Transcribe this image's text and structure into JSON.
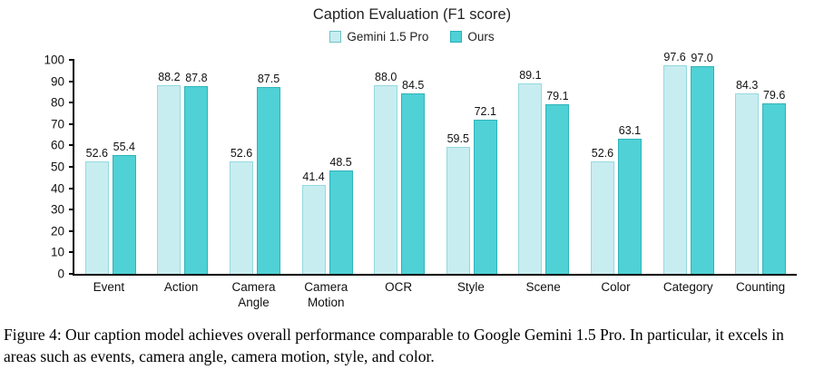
{
  "chart_data": {
    "type": "bar",
    "title": "Caption Evaluation (F1 score)",
    "categories": [
      "Event",
      "Action",
      "Camera\nAngle",
      "Camera\nMotion",
      "OCR",
      "Style",
      "Scene",
      "Color",
      "Category",
      "Counting"
    ],
    "series": [
      {
        "name": "Gemini 1.5 Pro",
        "color": "#c8edf0",
        "border": "#93d9de",
        "values": [
          52.6,
          88.2,
          52.6,
          41.4,
          88.0,
          59.5,
          89.1,
          52.6,
          97.6,
          84.3
        ]
      },
      {
        "name": "Ours",
        "color": "#4fd1d5",
        "border": "#2db4ba",
        "values": [
          55.4,
          87.8,
          87.5,
          48.5,
          84.5,
          72.1,
          79.1,
          63.1,
          97.0,
          79.6
        ]
      }
    ],
    "ylim": [
      0,
      100
    ],
    "yticks": [
      0,
      10,
      20,
      30,
      40,
      50,
      60,
      70,
      80,
      90,
      100
    ],
    "grid": false,
    "legend_position": "top"
  },
  "caption": {
    "text": "Figure 4: Our caption model achieves overall performance comparable to Google Gemini 1.5 Pro. In particular, it excels in areas such as events, camera angle, camera motion, style, and color."
  }
}
